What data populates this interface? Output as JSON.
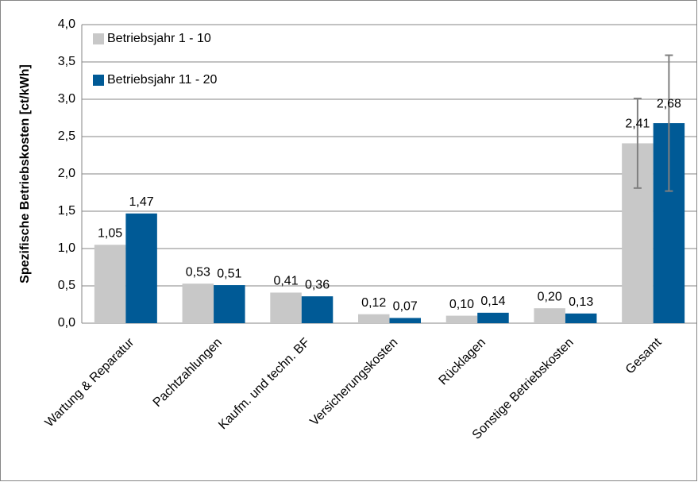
{
  "chart_data": {
    "type": "bar",
    "y_label": "Spezifische Betriebskosten [ct/kWh]",
    "categories": [
      "Wartung & Reparatur",
      "Pachtzahlungen",
      "Kaufm. und techn. BF",
      "Versicherungskosten",
      "Rücklagen",
      "Sonstige Betriebskosten",
      "Gesamt"
    ],
    "series": [
      {
        "name": "Betriebsjahr 1 - 10",
        "color": "#c8c8c8",
        "values": [
          1.05,
          0.53,
          0.41,
          0.12,
          0.1,
          0.2,
          2.41
        ],
        "value_labels": [
          "1,05",
          "0,53",
          "0,41",
          "0,12",
          "0,10",
          "0,20",
          "2,41"
        ],
        "errors": [
          null,
          null,
          null,
          null,
          null,
          null,
          0.6
        ]
      },
      {
        "name": "Betriebsjahr 11 - 20",
        "color": "#005a96",
        "values": [
          1.47,
          0.51,
          0.36,
          0.07,
          0.14,
          0.13,
          2.68
        ],
        "value_labels": [
          "1,47",
          "0,51",
          "0,36",
          "0,07",
          "0,14",
          "0,13",
          "2,68"
        ],
        "errors": [
          null,
          null,
          null,
          null,
          null,
          null,
          0.91
        ]
      }
    ],
    "ylim": [
      0,
      4
    ],
    "yticks": [
      {
        "value": 0,
        "label": "0,0"
      },
      {
        "value": 0.5,
        "label": "0,5"
      },
      {
        "value": 1,
        "label": "1,0"
      },
      {
        "value": 1.5,
        "label": "1,5"
      },
      {
        "value": 2,
        "label": "2,0"
      },
      {
        "value": 2.5,
        "label": "2,5"
      },
      {
        "value": 3,
        "label": "3,0"
      },
      {
        "value": 3.5,
        "label": "3,5"
      },
      {
        "value": 4,
        "label": "4,0"
      }
    ],
    "grid": true,
    "legend": "upper left"
  }
}
